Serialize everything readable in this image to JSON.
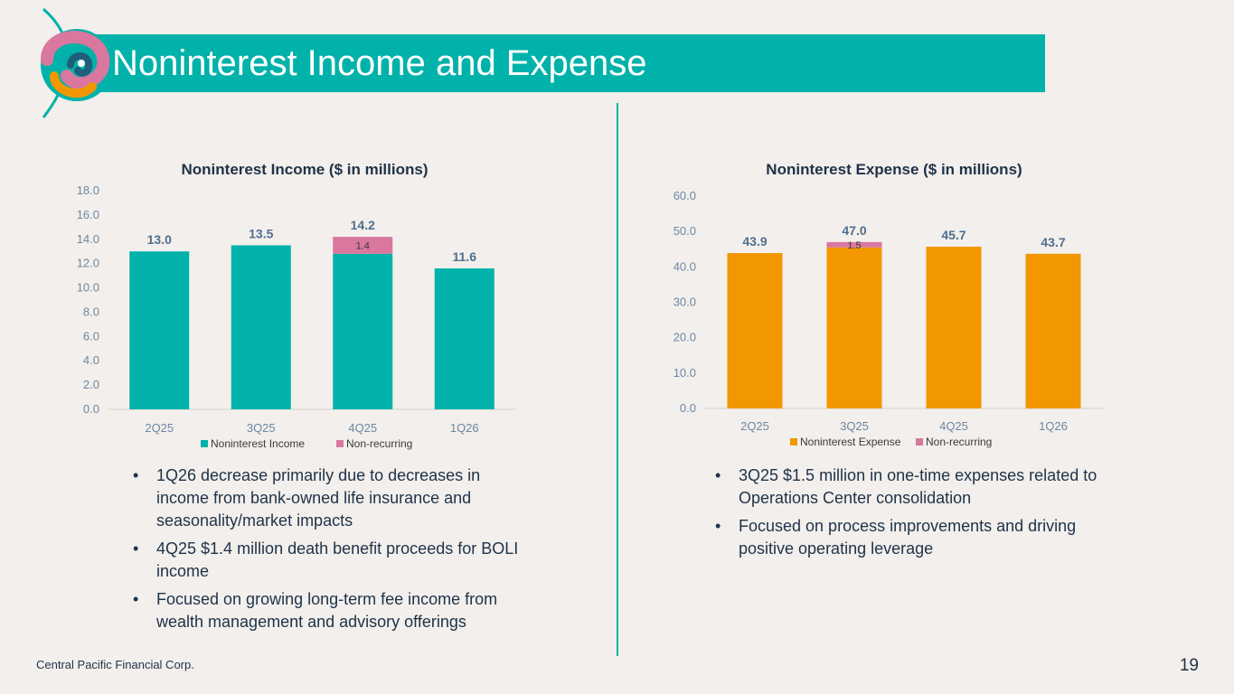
{
  "slide": {
    "title": "Noninterest Income and Expense",
    "footer": "Central Pacific Financial Corp.",
    "page_number": "19"
  },
  "colors": {
    "teal": "#00b2a9",
    "orange": "#f29700",
    "pink": "#d9779f",
    "text_dark": "#1f3248",
    "tick": "#6d87a3",
    "label": "#4f6e8f"
  },
  "chart_data": [
    {
      "type": "bar",
      "stacked": true,
      "title": "Noninterest Income ($ in millions)",
      "categories": [
        "2Q25",
        "3Q25",
        "4Q25",
        "1Q26"
      ],
      "series": [
        {
          "name": "Noninterest Income",
          "values": [
            13.0,
            13.5,
            12.8,
            11.6
          ],
          "color": "#00b2a9"
        },
        {
          "name": "Non-recurring",
          "values": [
            0,
            0,
            1.4,
            0
          ],
          "color": "#d9779f"
        }
      ],
      "segment_labels": [
        "",
        "",
        "1.4",
        ""
      ],
      "totals": [
        "13.0",
        "13.5",
        "14.2",
        "11.6"
      ],
      "yticks": [
        "0.0",
        "2.0",
        "4.0",
        "6.0",
        "8.0",
        "10.0",
        "12.0",
        "14.0",
        "16.0",
        "18.0"
      ],
      "ylim": [
        0,
        18
      ],
      "legend": "bottom",
      "grid": false
    },
    {
      "type": "bar",
      "stacked": true,
      "title": "Noninterest Expense ($ in millions)",
      "categories": [
        "2Q25",
        "3Q25",
        "4Q25",
        "1Q26"
      ],
      "series": [
        {
          "name": "Noninterest Expense",
          "values": [
            43.9,
            45.5,
            45.7,
            43.7
          ],
          "color": "#f29700"
        },
        {
          "name": "Non-recurring",
          "values": [
            0,
            1.5,
            0,
            0
          ],
          "color": "#d9779f"
        }
      ],
      "segment_labels": [
        "",
        "1.5",
        "",
        ""
      ],
      "totals": [
        "43.9",
        "47.0",
        "45.7",
        "43.7"
      ],
      "yticks": [
        "0.0",
        "10.0",
        "20.0",
        "30.0",
        "40.0",
        "50.0",
        "60.0"
      ],
      "ylim": [
        0,
        60
      ],
      "legend": "bottom",
      "grid": false
    }
  ],
  "income_bullets": [
    "1Q26 decrease primarily due to decreases in income from bank-owned life insurance and seasonality/market impacts",
    "4Q25 $1.4 million death benefit proceeds for BOLI income",
    "Focused on growing long-term fee income from wealth management and advisory offerings"
  ],
  "expense_bullets": [
    "3Q25 $1.5 million in one-time expenses related to Operations Center consolidation",
    "Focused on process improvements and driving positive operating leverage"
  ]
}
